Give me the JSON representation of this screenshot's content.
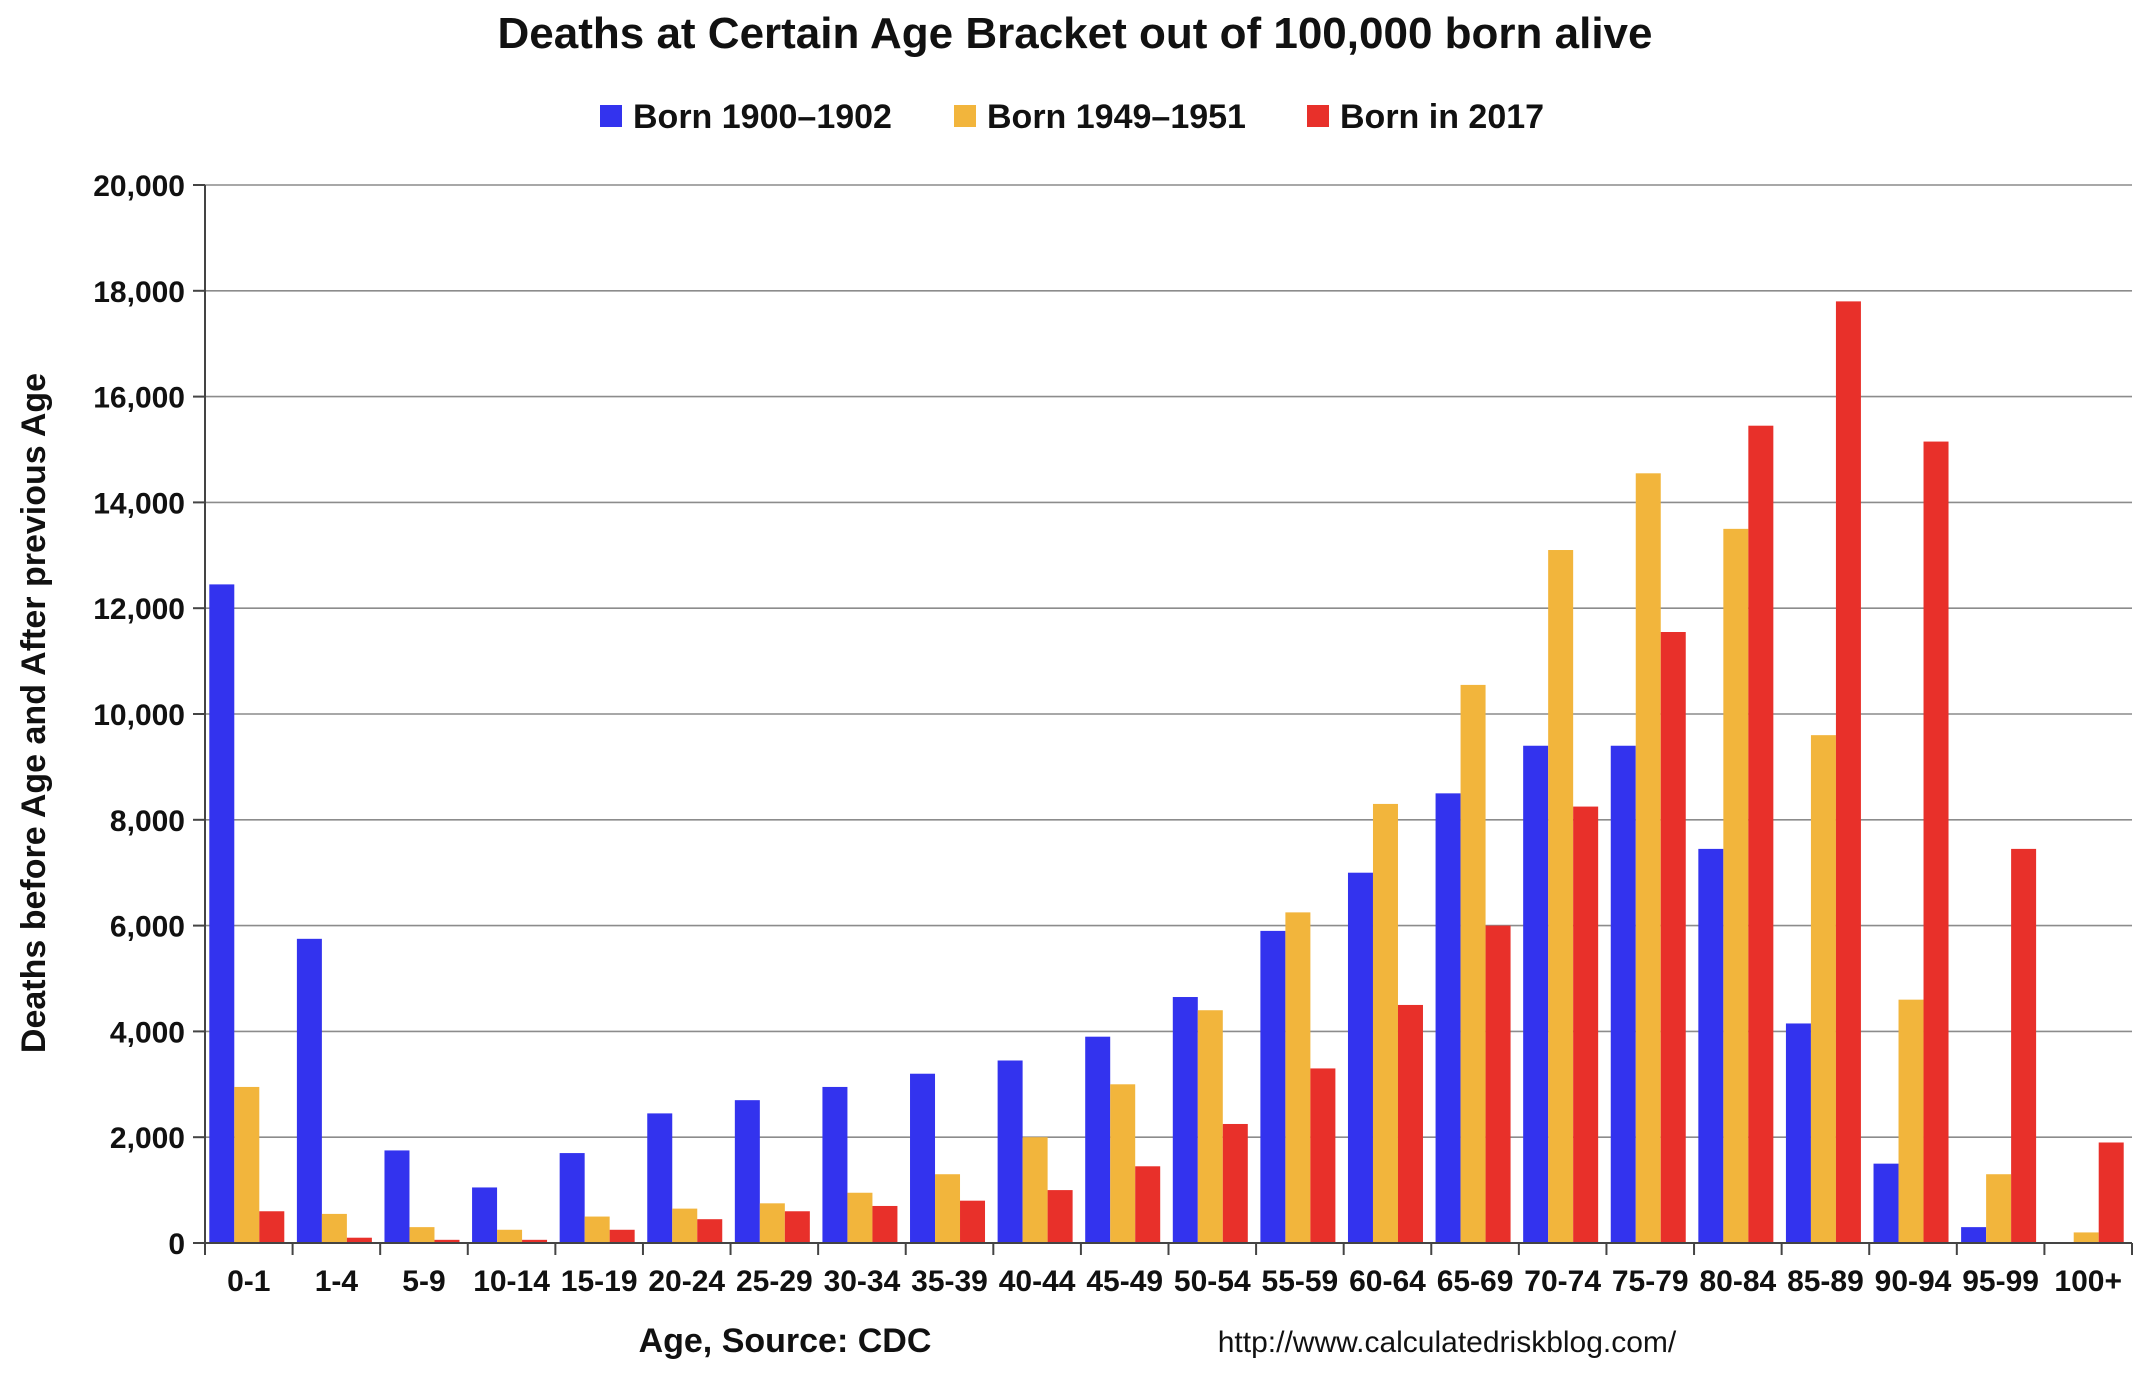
{
  "chart_data": {
    "type": "bar",
    "title": "Deaths at Certain Age Bracket out of 100,000 born alive",
    "xlabel": "Age, Source: CDC",
    "ylabel": "Deaths before Age and After previous Age",
    "source_url": "http://www.calculatedriskblog.com/",
    "ylim": [
      0,
      20000
    ],
    "y_ticks": [
      0,
      2000,
      4000,
      6000,
      8000,
      10000,
      12000,
      14000,
      16000,
      18000,
      20000
    ],
    "y_tick_labels": [
      "0",
      "2,000",
      "4,000",
      "6,000",
      "8,000",
      "10,000",
      "12,000",
      "14,000",
      "16,000",
      "18,000",
      "20,000"
    ],
    "grid": true,
    "legend_position": "top-center",
    "categories": [
      "0-1",
      "1-4",
      "5-9",
      "10-14",
      "15-19",
      "20-24",
      "25-29",
      "30-34",
      "35-39",
      "40-44",
      "45-49",
      "50-54",
      "55-59",
      "60-64",
      "65-69",
      "70-74",
      "75-79",
      "80-84",
      "85-89",
      "90-94",
      "95-99",
      "100+"
    ],
    "series": [
      {
        "name": "Born 1900–1902",
        "color": "#3333ee",
        "values": [
          12450,
          5750,
          1750,
          1050,
          1700,
          2450,
          2700,
          2950,
          3200,
          3450,
          3900,
          4650,
          5900,
          7000,
          8500,
          9400,
          9400,
          7450,
          4150,
          1500,
          300,
          0
        ]
      },
      {
        "name": "Born 1949–1951",
        "color": "#f2b53c",
        "values": [
          2950,
          550,
          300,
          250,
          500,
          650,
          750,
          950,
          1300,
          2000,
          3000,
          4400,
          6250,
          8300,
          10550,
          13100,
          14550,
          13500,
          9600,
          4600,
          1300,
          200
        ]
      },
      {
        "name": "Born in 2017",
        "color": "#e8302a",
        "values": [
          600,
          100,
          60,
          60,
          250,
          450,
          600,
          700,
          800,
          1000,
          1450,
          2250,
          3300,
          4500,
          6000,
          8250,
          11550,
          15450,
          17800,
          15150,
          7450,
          1900
        ]
      }
    ]
  }
}
